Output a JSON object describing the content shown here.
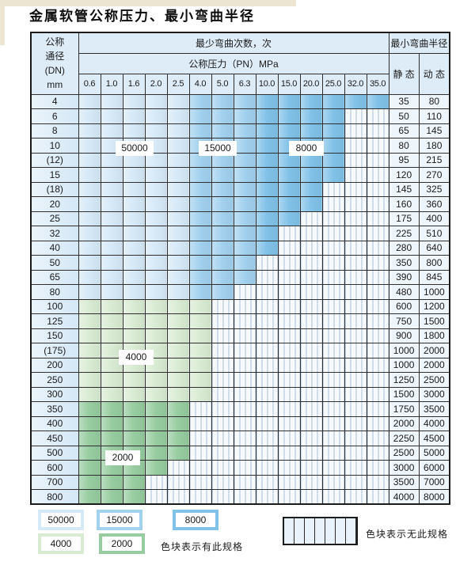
{
  "page": {
    "title": "金属软管公称压力、最小弯曲半径"
  },
  "table": {
    "header": {
      "dn_lines": [
        "公称",
        "通径",
        "(DN)",
        "mm"
      ],
      "bend_cycles": "最少弯曲次数，次",
      "pressure": "公称压力（PN）MPa",
      "min_bend_radius": "最小弯曲半径",
      "static_label": "静 态",
      "dynamic_label": "动 态",
      "pressures": [
        "0.6",
        "1.0",
        "1.6",
        "2.0",
        "2.5",
        "4.0",
        "5.0",
        "6.3",
        "10.0",
        "15.0",
        "20.0",
        "25.0",
        "32.0",
        "35.0"
      ]
    },
    "band_colors": {
      "cycles_50000": "#d6e9f7",
      "cycles_15000": "#a2d1ee",
      "cycles_8000": "#81c2e8",
      "cycles_4000": "#d9ebd3",
      "cycles_2000": "#97cca0"
    },
    "cycle_labels": [
      "50000",
      "15000",
      "8000",
      "4000",
      "2000"
    ],
    "rows": [
      {
        "dn": "4",
        "band": "blue",
        "last": 13,
        "static": "35",
        "dynamic": "80"
      },
      {
        "dn": "6",
        "band": "blue",
        "last": 11,
        "static": "50",
        "dynamic": "110"
      },
      {
        "dn": "8",
        "band": "blue",
        "last": 11,
        "static": "65",
        "dynamic": "145"
      },
      {
        "dn": "10",
        "band": "blue",
        "last": 11,
        "static": "80",
        "dynamic": "180"
      },
      {
        "dn": "(12)",
        "band": "blue",
        "last": 11,
        "static": "95",
        "dynamic": "215"
      },
      {
        "dn": "15",
        "band": "blue",
        "last": 11,
        "static": "120",
        "dynamic": "270"
      },
      {
        "dn": "(18)",
        "band": "blue",
        "last": 10,
        "static": "145",
        "dynamic": "325"
      },
      {
        "dn": "20",
        "band": "blue",
        "last": 10,
        "static": "160",
        "dynamic": "360"
      },
      {
        "dn": "25",
        "band": "blue",
        "last": 9,
        "static": "175",
        "dynamic": "400"
      },
      {
        "dn": "32",
        "band": "blue",
        "last": 8,
        "static": "225",
        "dynamic": "510"
      },
      {
        "dn": "40",
        "band": "blue",
        "last": 8,
        "static": "280",
        "dynamic": "640"
      },
      {
        "dn": "50",
        "band": "blue",
        "last": 7,
        "static": "350",
        "dynamic": "800"
      },
      {
        "dn": "65",
        "band": "blue",
        "last": 7,
        "static": "390",
        "dynamic": "845"
      },
      {
        "dn": "80",
        "band": "blue",
        "last": 6,
        "static": "480",
        "dynamic": "1000"
      },
      {
        "dn": "100",
        "band": "g4000",
        "last": 5,
        "static": "600",
        "dynamic": "1200"
      },
      {
        "dn": "125",
        "band": "g4000",
        "last": 5,
        "static": "750",
        "dynamic": "1500"
      },
      {
        "dn": "150",
        "band": "g4000",
        "last": 5,
        "static": "900",
        "dynamic": "1800"
      },
      {
        "dn": "(175)",
        "band": "g4000",
        "last": 5,
        "static": "1000",
        "dynamic": "2000"
      },
      {
        "dn": "200",
        "band": "g4000",
        "last": 5,
        "static": "1000",
        "dynamic": "2000"
      },
      {
        "dn": "250",
        "band": "g4000",
        "last": 5,
        "static": "1250",
        "dynamic": "2500"
      },
      {
        "dn": "300",
        "band": "g4000",
        "last": 5,
        "static": "1500",
        "dynamic": "3000"
      },
      {
        "dn": "350",
        "band": "g2000",
        "last": 4,
        "static": "1750",
        "dynamic": "3500"
      },
      {
        "dn": "400",
        "band": "g2000",
        "last": 4,
        "static": "2000",
        "dynamic": "4000"
      },
      {
        "dn": "450",
        "band": "g2000",
        "last": 4,
        "static": "2250",
        "dynamic": "4500"
      },
      {
        "dn": "500",
        "band": "g2000",
        "last": 4,
        "static": "2500",
        "dynamic": "5000"
      },
      {
        "dn": "600",
        "band": "g2000",
        "last": 3,
        "static": "3000",
        "dynamic": "6000"
      },
      {
        "dn": "700",
        "band": "g2000",
        "last": 2,
        "static": "3500",
        "dynamic": "7000"
      },
      {
        "dn": "800",
        "band": "g2000",
        "last": 2,
        "static": "4000",
        "dynamic": "8000"
      }
    ]
  },
  "legend": {
    "items": [
      {
        "label": "50000",
        "color": "#d6e9f7"
      },
      {
        "label": "15000",
        "color": "#a2d1ee"
      },
      {
        "label": "8000",
        "color": "#81c2e8"
      },
      {
        "label": "4000",
        "color": "#d9ebd3"
      },
      {
        "label": "2000",
        "color": "#97cca0"
      }
    ],
    "has_spec_text": "色块表示有此规格",
    "no_spec_text": "色块表示无此规格"
  }
}
